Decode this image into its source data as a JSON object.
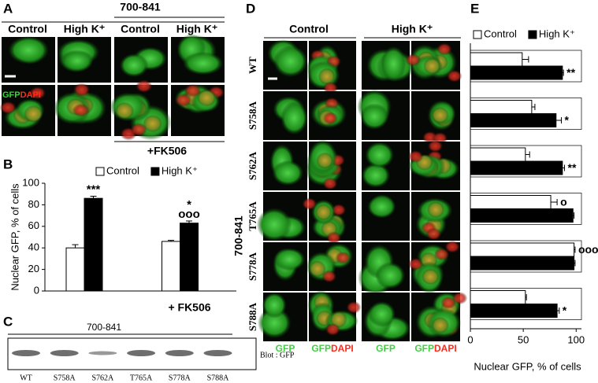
{
  "panels": {
    "a": {
      "letter": "A",
      "construct": "700-841",
      "headers": [
        "Control",
        "High K⁺",
        "Control",
        "High K⁺"
      ],
      "gfp": "GFP",
      "dapi": "DAPI",
      "treatment": "+FK506"
    },
    "b": {
      "letter": "B"
    },
    "c": {
      "letter": "C",
      "construct": "700-841",
      "lanes": [
        "WT",
        "S758A",
        "S762A",
        "T765A",
        "S778A",
        "S788A"
      ],
      "blot": "Blot : GFP"
    },
    "d": {
      "letter": "D",
      "headers": [
        "Control",
        "High K⁺"
      ],
      "construct": "700-841",
      "rows": [
        "WT",
        "S758A",
        "S762A",
        "T765A",
        "S778A",
        "S788A"
      ],
      "columns": [
        {
          "gfp": "GFP"
        },
        {
          "gfp": "GFP",
          "dapi": "DAPI"
        },
        {
          "gfp": "GFP"
        },
        {
          "gfp": "GFP",
          "dapi": "DAPI"
        }
      ]
    },
    "e": {
      "letter": "E"
    }
  },
  "chart_data": [
    {
      "type": "bar",
      "ylabel": "Nuclear GFP, % of cells",
      "categories": [
        null,
        "+ FK506"
      ],
      "series": [
        {
          "name": "Control",
          "color": "#ffffff",
          "values": [
            40,
            46
          ],
          "errors": [
            3,
            1
          ]
        },
        {
          "name": "High K⁺",
          "color": "#000000",
          "values": [
            86,
            63
          ],
          "errors": [
            2,
            2
          ],
          "annotations": [
            [
              "***"
            ],
            [
              "ooo",
              "*"
            ]
          ]
        }
      ],
      "ylim": [
        0,
        100
      ],
      "yticks": [
        0,
        20,
        40,
        60,
        80,
        100
      ]
    },
    {
      "type": "barh",
      "xlabel": "Nuclear GFP, % of cells",
      "categories": [
        "WT",
        "S758A",
        "S762A",
        "T765A",
        "S778A",
        "S788A"
      ],
      "series": [
        {
          "name": "Control",
          "color": "#ffffff",
          "values": [
            49,
            58,
            52,
            76,
            98,
            52
          ],
          "errors": [
            6,
            3,
            4,
            6,
            1,
            1
          ],
          "annotations": [
            null,
            null,
            null,
            "o",
            "ooo",
            null
          ]
        },
        {
          "name": "High K⁺",
          "color": "#000000",
          "values": [
            87,
            81,
            87,
            97,
            98,
            82
          ],
          "errors": [
            1,
            5,
            2,
            1,
            1,
            2
          ],
          "annotations": [
            "**",
            "*",
            "**",
            null,
            null,
            "*"
          ]
        }
      ],
      "xlim": [
        0,
        105
      ],
      "xticks": [
        0,
        50,
        100
      ]
    }
  ]
}
